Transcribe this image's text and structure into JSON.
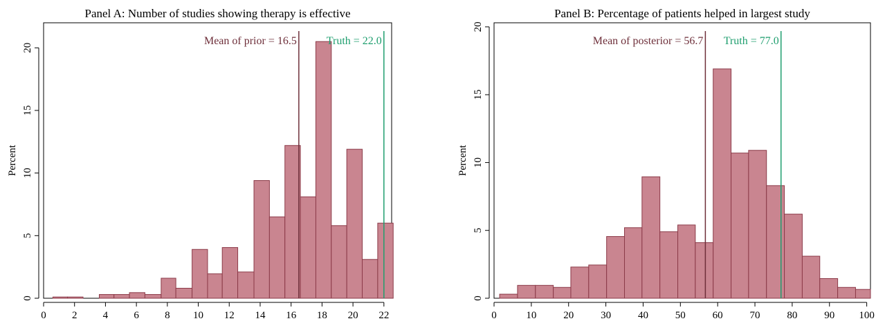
{
  "chart_data": [
    {
      "type": "bar",
      "title": "Panel A: Number of studies showing therapy is  effective",
      "xlabel": "",
      "ylabel": "Percent",
      "xlim": [
        0,
        22.5
      ],
      "ylim": [
        0,
        22
      ],
      "x_ticks": [
        0,
        2,
        4,
        6,
        8,
        10,
        12,
        14,
        16,
        18,
        20,
        22
      ],
      "y_ticks": [
        0,
        5,
        10,
        15,
        20
      ],
      "grid": false,
      "bar_color": "#c98590",
      "bar_edge_color": "#8b3a48",
      "bins": [
        {
          "x0": 0.6,
          "x1": 1.55,
          "value": 0.1
        },
        {
          "x0": 1.55,
          "x1": 2.55,
          "value": 0.1
        },
        {
          "x0": 3.6,
          "x1": 4.55,
          "value": 0.3
        },
        {
          "x0": 4.55,
          "x1": 5.55,
          "value": 0.3
        },
        {
          "x0": 5.55,
          "x1": 6.55,
          "value": 0.45
        },
        {
          "x0": 6.55,
          "x1": 7.6,
          "value": 0.3
        },
        {
          "x0": 7.6,
          "x1": 8.55,
          "value": 1.6
        },
        {
          "x0": 8.55,
          "x1": 9.6,
          "value": 0.8
        },
        {
          "x0": 9.6,
          "x1": 10.6,
          "value": 3.9
        },
        {
          "x0": 10.6,
          "x1": 11.55,
          "value": 1.95
        },
        {
          "x0": 11.55,
          "x1": 12.55,
          "value": 4.05
        },
        {
          "x0": 12.55,
          "x1": 13.6,
          "value": 2.1
        },
        {
          "x0": 13.6,
          "x1": 14.6,
          "value": 9.4
        },
        {
          "x0": 14.6,
          "x1": 15.6,
          "value": 6.5
        },
        {
          "x0": 15.6,
          "x1": 16.6,
          "value": 12.2
        },
        {
          "x0": 16.6,
          "x1": 17.6,
          "value": 8.1
        },
        {
          "x0": 17.6,
          "x1": 18.6,
          "value": 20.5
        },
        {
          "x0": 18.6,
          "x1": 19.6,
          "value": 5.8
        },
        {
          "x0": 19.6,
          "x1": 20.6,
          "value": 11.9
        },
        {
          "x0": 20.6,
          "x1": 21.6,
          "value": 3.1
        },
        {
          "x0": 21.6,
          "x1": 22.6,
          "value": 6.0
        }
      ],
      "reference_lines": [
        {
          "x": 16.5,
          "label": "Mean of prior = 16.5",
          "color": "#6e2f3a",
          "label_side": "left"
        },
        {
          "x": 22.0,
          "label": "Truth = 22.0",
          "color": "#1e9e6e",
          "label_side": "left"
        }
      ]
    },
    {
      "type": "bar",
      "title": "Panel B: Percentage of patients helped in largest study",
      "xlabel": "",
      "ylabel": "Percent",
      "xlim": [
        0,
        101
      ],
      "ylim": [
        0,
        20.3
      ],
      "x_ticks": [
        0,
        10,
        20,
        30,
        40,
        50,
        60,
        70,
        80,
        90,
        100
      ],
      "y_ticks": [
        0,
        5,
        10,
        15,
        20
      ],
      "grid": false,
      "bar_color": "#c98590",
      "bar_edge_color": "#8b3a48",
      "bins": [
        {
          "x0": 1.5,
          "x1": 6.3,
          "value": 0.3
        },
        {
          "x0": 6.3,
          "x1": 11.1,
          "value": 0.95
        },
        {
          "x0": 11.1,
          "x1": 15.9,
          "value": 0.95
        },
        {
          "x0": 15.9,
          "x1": 20.6,
          "value": 0.8
        },
        {
          "x0": 20.6,
          "x1": 25.4,
          "value": 2.3
        },
        {
          "x0": 25.4,
          "x1": 30.2,
          "value": 2.45
        },
        {
          "x0": 30.2,
          "x1": 35.0,
          "value": 4.55
        },
        {
          "x0": 35.0,
          "x1": 39.7,
          "value": 5.2
        },
        {
          "x0": 39.7,
          "x1": 44.5,
          "value": 8.95
        },
        {
          "x0": 44.5,
          "x1": 49.3,
          "value": 4.9
        },
        {
          "x0": 49.3,
          "x1": 54.0,
          "value": 5.4
        },
        {
          "x0": 54.0,
          "x1": 58.8,
          "value": 4.1
        },
        {
          "x0": 58.8,
          "x1": 63.6,
          "value": 16.9
        },
        {
          "x0": 63.6,
          "x1": 68.3,
          "value": 10.7
        },
        {
          "x0": 68.3,
          "x1": 73.1,
          "value": 10.9
        },
        {
          "x0": 73.1,
          "x1": 77.9,
          "value": 8.3
        },
        {
          "x0": 77.9,
          "x1": 82.7,
          "value": 6.2
        },
        {
          "x0": 82.7,
          "x1": 87.4,
          "value": 3.1
        },
        {
          "x0": 87.4,
          "x1": 92.2,
          "value": 1.45
        },
        {
          "x0": 92.2,
          "x1": 97.0,
          "value": 0.8
        },
        {
          "x0": 97.0,
          "x1": 101.0,
          "value": 0.65
        }
      ],
      "reference_lines": [
        {
          "x": 56.7,
          "label": "Mean of posterior = 56.7",
          "color": "#6e2f3a",
          "label_side": "left"
        },
        {
          "x": 77.0,
          "label": "Truth = 77.0",
          "color": "#1e9e6e",
          "label_side": "left"
        }
      ]
    }
  ]
}
